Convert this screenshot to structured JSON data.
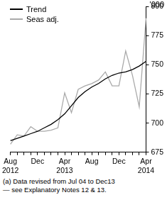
{
  "chart_data": {
    "type": "line",
    "y_label": "'000",
    "notes": [
      "(a) Data revised from Jul 04 to Dec13",
      "— see Explanatory Notes 12 & 13."
    ],
    "categories": [
      "Aug 2012",
      null,
      null,
      null,
      "Dec",
      null,
      null,
      null,
      "Apr 2013",
      null,
      null,
      null,
      "Aug",
      null,
      null,
      null,
      "Dec",
      null,
      null,
      null,
      "Apr 2014"
    ],
    "series": [
      {
        "name": "Trend",
        "color": "#000000",
        "values": [
          685,
          687,
          689,
          691,
          693,
          696,
          699,
          703,
          708,
          715,
          722,
          727,
          731,
          734,
          738,
          741,
          743,
          744,
          746,
          749,
          753
        ]
      },
      {
        "name": "Seas adj.",
        "color": "#aaaaaa",
        "values": [
          682,
          690,
          689,
          697,
          693,
          693,
          694,
          696,
          726,
          709,
          729,
          732,
          734,
          737,
          744,
          732,
          732,
          762,
          741,
          714,
          790
        ]
      }
    ],
    "ylim": [
      675,
      800
    ],
    "yticks": [
      675,
      700,
      725,
      750,
      775,
      800
    ],
    "grid": false,
    "legend": "upper left"
  }
}
